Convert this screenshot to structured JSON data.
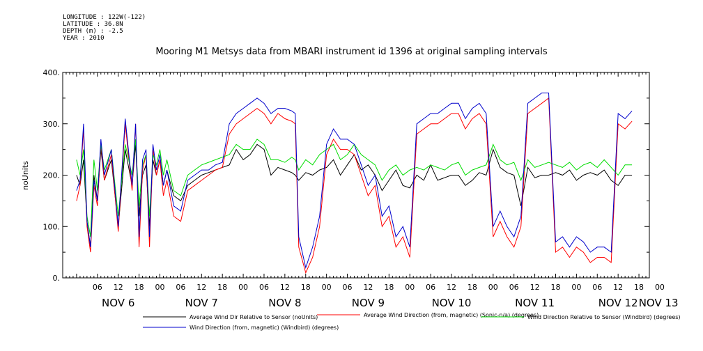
{
  "header": {
    "longitude": "LONGITUDE : 122W(-122)",
    "latitude": "LATITUDE : 36.8N",
    "depth": "DEPTH (m) : -2.5",
    "year": "YEAR : 2010"
  },
  "chart_data": {
    "type": "line",
    "title": "Mooring M1 Metsys data from MBARI instrument id 1396 at original sampling intervals",
    "ylabel": "noUnits",
    "xlabel": "",
    "ylim": [
      0,
      400
    ],
    "y_ticks": [
      "0.",
      "100.",
      "200.",
      "300.",
      "400."
    ],
    "x_range_hours": [
      -4,
      165
    ],
    "hour_tick_labels": [
      "06",
      "12",
      "18",
      "00",
      "06",
      "12",
      "18",
      "00",
      "06",
      "12",
      "18",
      "00",
      "06",
      "12",
      "18",
      "00",
      "06",
      "12",
      "18",
      "00",
      "06",
      "12",
      "18",
      "00",
      "06",
      "12",
      "18",
      "00"
    ],
    "date_labels": [
      "NOV  6",
      "NOV  7",
      "NOV  8",
      "NOV  9",
      "NOV 10",
      "NOV 11",
      "NOV 12",
      "NOV 13"
    ],
    "grid": false,
    "legend_position": "bottom",
    "series": [
      {
        "name": "Average Wind Dir Relative to Sensor (noUnits)",
        "color": "#000000",
        "x": [
          0,
          1,
          2,
          3,
          4,
          5,
          6,
          7,
          8,
          10,
          12,
          14,
          16,
          17,
          18,
          19,
          20,
          21,
          22,
          23,
          24,
          25,
          26,
          28,
          30,
          32,
          34,
          36,
          38,
          40,
          42,
          44,
          46,
          48,
          50,
          52,
          54,
          56,
          58,
          60,
          62,
          63,
          64,
          66,
          68,
          70,
          72,
          74,
          76,
          78,
          80,
          82,
          84,
          86,
          88,
          90,
          92,
          94,
          96,
          98,
          100,
          102,
          104,
          106,
          108,
          110,
          112,
          114,
          116,
          118,
          120,
          122,
          124,
          126,
          128,
          130,
          132,
          134,
          136,
          138,
          140,
          142,
          144,
          146,
          148,
          150,
          152,
          154,
          156,
          158,
          160
        ],
        "y": [
          200,
          180,
          230,
          110,
          60,
          200,
          150,
          250,
          190,
          230,
          100,
          250,
          180,
          260,
          120,
          200,
          220,
          100,
          230,
          200,
          230,
          180,
          210,
          160,
          150,
          180,
          190,
          200,
          205,
          210,
          215,
          220,
          250,
          230,
          240,
          260,
          250,
          200,
          215,
          210,
          205,
          200,
          190,
          205,
          200,
          210,
          215,
          230,
          200,
          220,
          240,
          210,
          220,
          200,
          170,
          190,
          210,
          180,
          175,
          200,
          190,
          220,
          190,
          195,
          200,
          200,
          180,
          190,
          205,
          200,
          250,
          215,
          205,
          200,
          140,
          215,
          195,
          200,
          200,
          205,
          200,
          210,
          190,
          200,
          205,
          200,
          210,
          190,
          180,
          200,
          200
        ]
      },
      {
        "name": "Average Wind Direction (from, magnetic) (Sonic-n/a) (degrees)",
        "color": "#ff0000",
        "x": [
          0,
          1,
          2,
          3,
          4,
          5,
          6,
          7,
          8,
          10,
          12,
          14,
          16,
          17,
          18,
          19,
          20,
          21,
          22,
          23,
          24,
          25,
          26,
          28,
          30,
          32,
          34,
          36,
          38,
          40,
          42,
          44,
          46,
          48,
          50,
          52,
          54,
          56,
          58,
          60,
          62,
          63,
          64,
          66,
          68,
          70,
          72,
          74,
          76,
          78,
          80,
          82,
          84,
          86,
          88,
          90,
          92,
          94,
          96,
          98,
          100,
          102,
          104,
          106,
          108,
          110,
          112,
          114,
          116,
          118,
          120,
          122,
          124,
          126,
          128,
          130,
          132,
          134,
          136,
          138,
          140,
          142,
          144,
          146,
          148,
          150,
          152,
          154,
          156,
          158,
          160
        ],
        "y": [
          150,
          180,
          290,
          100,
          50,
          180,
          140,
          260,
          190,
          240,
          90,
          300,
          170,
          300,
          60,
          210,
          240,
          60,
          250,
          200,
          230,
          160,
          190,
          120,
          110,
          170,
          180,
          190,
          200,
          210,
          215,
          280,
          300,
          310,
          320,
          330,
          320,
          300,
          320,
          310,
          305,
          300,
          60,
          10,
          40,
          100,
          240,
          270,
          250,
          250,
          240,
          200,
          160,
          180,
          100,
          120,
          60,
          80,
          40,
          280,
          290,
          300,
          300,
          310,
          320,
          320,
          290,
          310,
          320,
          300,
          80,
          110,
          80,
          60,
          100,
          320,
          330,
          340,
          350,
          50,
          60,
          40,
          60,
          50,
          30,
          40,
          40,
          30,
          300,
          290,
          305
        ]
      },
      {
        "name": "Wind Direction Relative to Sensor (Windbird) (degrees)",
        "color": "#00dd00",
        "x": [
          0,
          1,
          2,
          3,
          4,
          5,
          6,
          7,
          8,
          10,
          12,
          14,
          16,
          17,
          18,
          19,
          20,
          21,
          22,
          23,
          24,
          25,
          26,
          28,
          30,
          32,
          34,
          36,
          38,
          40,
          42,
          44,
          46,
          48,
          50,
          52,
          54,
          56,
          58,
          60,
          62,
          63,
          64,
          66,
          68,
          70,
          72,
          74,
          76,
          78,
          80,
          82,
          84,
          86,
          88,
          90,
          92,
          94,
          96,
          98,
          100,
          102,
          104,
          106,
          108,
          110,
          112,
          114,
          116,
          118,
          120,
          122,
          124,
          126,
          128,
          130,
          132,
          134,
          136,
          138,
          140,
          142,
          144,
          146,
          148,
          150,
          152,
          154,
          156,
          158,
          160
        ],
        "y": [
          230,
          200,
          250,
          120,
          80,
          230,
          170,
          260,
          210,
          250,
          120,
          260,
          200,
          270,
          140,
          220,
          240,
          120,
          240,
          220,
          250,
          200,
          230,
          170,
          160,
          200,
          210,
          220,
          225,
          230,
          235,
          240,
          260,
          250,
          250,
          270,
          260,
          230,
          230,
          225,
          235,
          230,
          210,
          230,
          220,
          240,
          250,
          260,
          230,
          240,
          260,
          240,
          230,
          220,
          190,
          210,
          220,
          200,
          210,
          215,
          210,
          220,
          215,
          210,
          220,
          225,
          200,
          210,
          215,
          220,
          260,
          230,
          220,
          225,
          190,
          230,
          215,
          220,
          225,
          220,
          215,
          225,
          210,
          220,
          225,
          215,
          230,
          215,
          200,
          220,
          220
        ]
      },
      {
        "name": "Wind Direction (from, magnetic) (Windbird) (degrees)",
        "color": "#0000cc",
        "x": [
          0,
          1,
          2,
          3,
          4,
          5,
          6,
          7,
          8,
          10,
          12,
          14,
          16,
          17,
          18,
          19,
          20,
          21,
          22,
          23,
          24,
          25,
          26,
          28,
          30,
          32,
          34,
          36,
          38,
          40,
          42,
          44,
          46,
          48,
          50,
          52,
          54,
          56,
          58,
          60,
          62,
          63,
          64,
          66,
          68,
          70,
          72,
          74,
          76,
          78,
          80,
          82,
          84,
          86,
          88,
          90,
          92,
          94,
          96,
          98,
          100,
          102,
          104,
          106,
          108,
          110,
          112,
          114,
          116,
          118,
          120,
          122,
          124,
          126,
          128,
          130,
          132,
          134,
          136,
          138,
          140,
          142,
          144,
          146,
          148,
          150,
          152,
          154,
          156,
          158,
          160
        ],
        "y": [
          170,
          190,
          300,
          110,
          60,
          190,
          150,
          270,
          200,
          250,
          100,
          310,
          180,
          300,
          80,
          230,
          250,
          80,
          260,
          210,
          240,
          180,
          210,
          140,
          130,
          190,
          200,
          210,
          210,
          220,
          225,
          300,
          320,
          330,
          340,
          350,
          340,
          320,
          330,
          330,
          325,
          320,
          80,
          20,
          60,
          120,
          260,
          290,
          270,
          270,
          260,
          220,
          180,
          200,
          120,
          140,
          80,
          100,
          60,
          300,
          310,
          320,
          320,
          330,
          340,
          340,
          310,
          330,
          340,
          320,
          100,
          130,
          100,
          80,
          120,
          340,
          350,
          360,
          360,
          70,
          80,
          60,
          80,
          70,
          50,
          60,
          60,
          50,
          320,
          310,
          325
        ]
      }
    ]
  }
}
